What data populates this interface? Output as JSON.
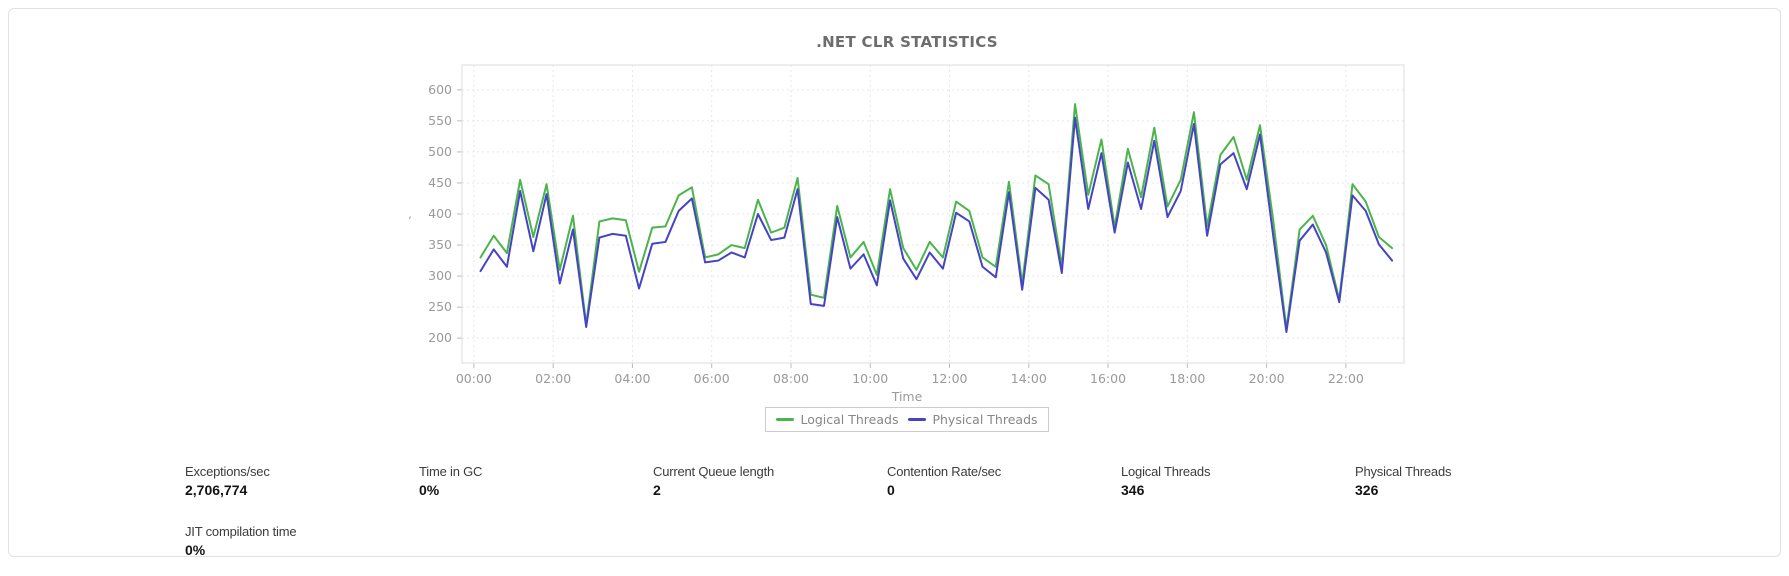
{
  "chart": {
    "title": ".NET CLR STATISTICS",
    "x_axis_label": "Time",
    "y_axis_label": ","
  },
  "chart_data": {
    "type": "line",
    "title": ".NET CLR STATISTICS",
    "xlabel": "Time",
    "ylabel": "",
    "grid": true,
    "legend_position": "bottom-center",
    "ylim": [
      160,
      640
    ],
    "y_ticks": [
      200,
      250,
      300,
      350,
      400,
      450,
      500,
      550,
      600
    ],
    "xlim_minutes": [
      -18,
      1408
    ],
    "x_ticks": [
      {
        "minutes": 0,
        "label": "00:00"
      },
      {
        "minutes": 120,
        "label": "02:00"
      },
      {
        "minutes": 240,
        "label": "04:00"
      },
      {
        "minutes": 360,
        "label": "06:00"
      },
      {
        "minutes": 480,
        "label": "08:00"
      },
      {
        "minutes": 600,
        "label": "10:00"
      },
      {
        "minutes": 720,
        "label": "12:00"
      },
      {
        "minutes": 840,
        "label": "14:00"
      },
      {
        "minutes": 960,
        "label": "16:00"
      },
      {
        "minutes": 1080,
        "label": "18:00"
      },
      {
        "minutes": 1200,
        "label": "20:00"
      },
      {
        "minutes": 1320,
        "label": "22:00"
      }
    ],
    "x_start_minutes": 10,
    "x_step_minutes": 20,
    "series": [
      {
        "name": "Logical Threads",
        "color": "#4cb44c",
        "values": [
          330,
          365,
          337,
          455,
          363,
          448,
          310,
          397,
          222,
          388,
          393,
          390,
          307,
          378,
          380,
          430,
          443,
          330,
          335,
          350,
          345,
          423,
          370,
          378,
          458,
          270,
          265,
          413,
          330,
          355,
          302,
          440,
          345,
          310,
          355,
          330,
          420,
          405,
          330,
          315,
          452,
          288,
          462,
          448,
          315,
          577,
          431,
          520,
          379,
          505,
          427,
          539,
          412,
          455,
          564,
          380,
          495,
          524,
          455,
          543,
          390,
          215,
          375,
          397,
          350,
          262,
          448,
          420,
          363,
          345
        ]
      },
      {
        "name": "Physical Threads",
        "color": "#4444c4",
        "values": [
          308,
          343,
          315,
          437,
          340,
          432,
          288,
          375,
          218,
          362,
          368,
          365,
          280,
          352,
          355,
          405,
          425,
          322,
          325,
          338,
          330,
          400,
          358,
          362,
          440,
          255,
          252,
          395,
          312,
          335,
          285,
          422,
          328,
          295,
          338,
          312,
          402,
          388,
          315,
          298,
          435,
          278,
          442,
          423,
          305,
          555,
          408,
          498,
          370,
          483,
          408,
          518,
          395,
          437,
          545,
          365,
          480,
          498,
          440,
          528,
          365,
          210,
          357,
          383,
          338,
          258,
          430,
          405,
          351,
          325
        ]
      }
    ]
  },
  "stats": [
    {
      "label": "Exceptions/sec",
      "value": "2,706,774"
    },
    {
      "label": "Time in GC",
      "value": "0%"
    },
    {
      "label": "Current Queue length",
      "value": "2"
    },
    {
      "label": "Contention Rate/sec",
      "value": "0"
    },
    {
      "label": "Logical Threads",
      "value": "346"
    },
    {
      "label": "Physical Threads",
      "value": "326"
    },
    {
      "label": "JIT compilation time",
      "value": "0%"
    }
  ],
  "colors": {
    "logical_threads": "#4cb44c",
    "physical_threads": "#4444c4",
    "grid": "#e7e7e7",
    "axis_border": "#dddddd",
    "tick": "#bbbbbb",
    "tick_label": "#9a9a9a",
    "card_border": "#e2e2e2"
  }
}
